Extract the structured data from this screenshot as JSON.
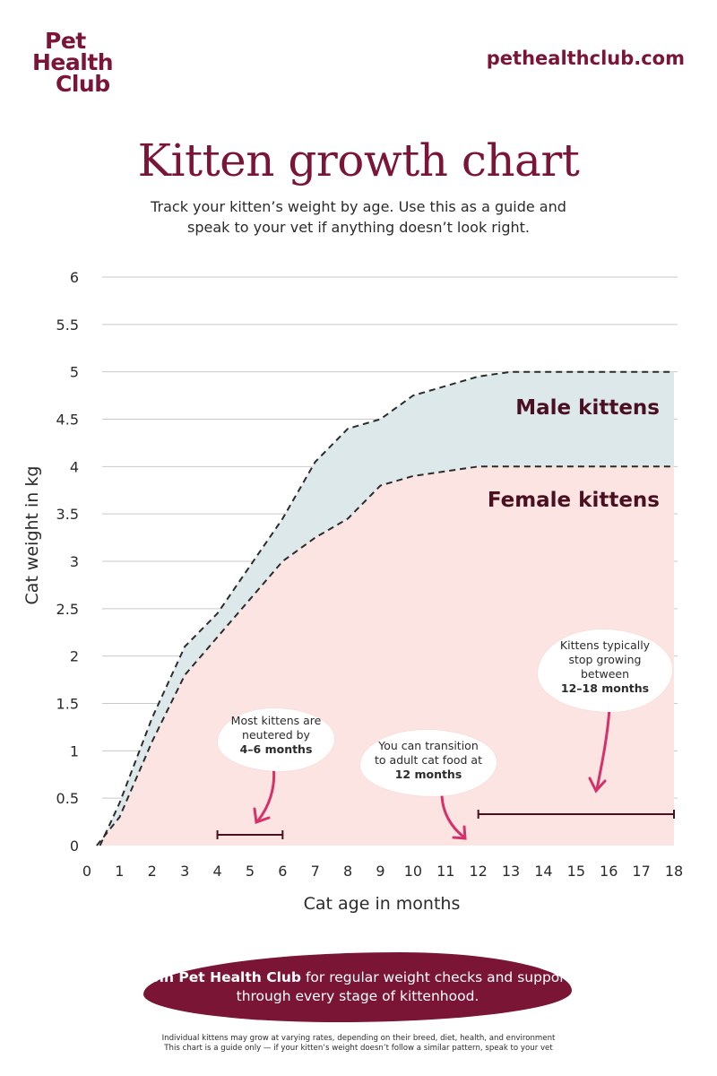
{
  "brand": {
    "logo_lines": [
      "Pet",
      "Health",
      "Club"
    ],
    "site": "pethealthclub.com"
  },
  "title": "Kitten growth chart",
  "subtitle": "Track your kitten’s weight by age. Use this as a guide and speak to your vet if anything doesn’t look right.",
  "colors": {
    "brand": "#7a1535",
    "male_band": "#dce8ea",
    "female_area": "#fce4e2",
    "arrow": "#d6316a",
    "text": "#2b2b2b"
  },
  "chart_data": {
    "type": "area",
    "xlabel": "Cat age in months",
    "ylabel": "Cat weight in kg",
    "xlim": [
      0,
      18
    ],
    "ylim": [
      0,
      6
    ],
    "x_ticks": [
      "0",
      "1",
      "2",
      "3",
      "4",
      "5",
      "6",
      "7",
      "8",
      "9",
      "10",
      "11",
      "12",
      "13",
      "14",
      "15",
      "16",
      "17",
      "18"
    ],
    "y_ticks": [
      "0",
      "0.5",
      "1",
      "1.5",
      "2",
      "2.5",
      "3",
      "3.5",
      "4",
      "4.5",
      "5",
      "5.5",
      "6"
    ],
    "grid": "horizontal",
    "series": [
      {
        "name": "Male kittens",
        "points": [
          [
            0.4,
            0
          ],
          [
            1,
            0.45
          ],
          [
            2,
            1.35
          ],
          [
            3,
            2.1
          ],
          [
            4,
            2.45
          ],
          [
            5,
            2.95
          ],
          [
            6,
            3.45
          ],
          [
            7,
            4.05
          ],
          [
            8,
            4.4
          ],
          [
            9,
            4.5
          ],
          [
            10,
            4.75
          ],
          [
            11,
            4.85
          ],
          [
            12,
            4.95
          ],
          [
            13,
            5
          ],
          [
            14,
            5
          ],
          [
            15,
            5
          ],
          [
            16,
            5
          ],
          [
            17,
            5
          ],
          [
            18,
            5
          ]
        ]
      },
      {
        "name": "Female kittens",
        "points": [
          [
            0.3,
            0
          ],
          [
            1,
            0.3
          ],
          [
            2,
            1.1
          ],
          [
            3,
            1.8
          ],
          [
            4,
            2.2
          ],
          [
            5,
            2.6
          ],
          [
            6,
            3.0
          ],
          [
            7,
            3.25
          ],
          [
            8,
            3.45
          ],
          [
            9,
            3.8
          ],
          [
            10,
            3.9
          ],
          [
            11,
            3.95
          ],
          [
            12,
            4.0
          ],
          [
            13,
            4.0
          ],
          [
            14,
            4.0
          ],
          [
            15,
            4.0
          ],
          [
            16,
            4.0
          ],
          [
            17,
            4.0
          ],
          [
            18,
            4.0
          ]
        ]
      }
    ],
    "ranges": [
      {
        "from": 4,
        "to": 6
      },
      {
        "from": 12,
        "to": 18
      }
    ]
  },
  "annotations": {
    "neuter": {
      "pre": "Most kittens are neutered by",
      "bold": "4–6 months"
    },
    "food": {
      "pre": "You can transition to adult cat food at",
      "bold": "12 months"
    },
    "stop": {
      "pre": "Kittens typically stop growing between",
      "bold": "12–18 months"
    }
  },
  "banner": {
    "bold": "Join Pet Health Club",
    "rest": "for regular weight checks and support through every stage of kittenhood."
  },
  "footnote": {
    "line1": "Individual kittens may grow at varying rates, depending on their breed, diet, health, and environment",
    "line2": "This chart is a guide only — if your kitten’s weight doesn’t follow a similar pattern, speak to your vet"
  }
}
